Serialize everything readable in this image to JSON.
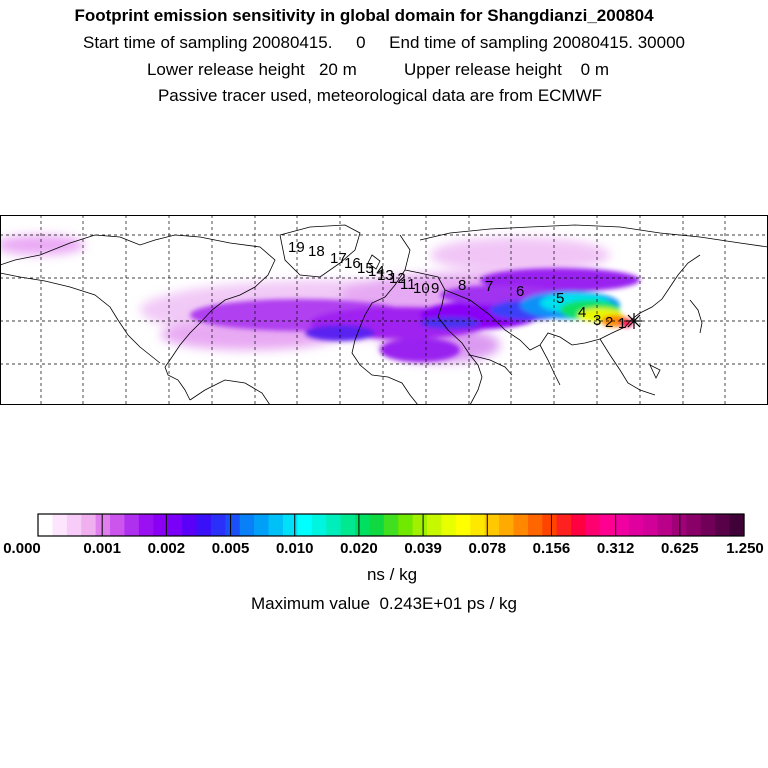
{
  "title": {
    "line1": "Footprint emission sensitivity in global domain for Shangdianzi_200804",
    "line2": "Start time of sampling 20080415.     0     End time of sampling 20080415. 30000",
    "line3": "Lower release height   20 m          Upper release height    0 m",
    "line4": "Passive tracer used, meteorological data are from ECMWF"
  },
  "map": {
    "trajectory_labels": [
      "1",
      "2",
      "3",
      "4",
      "5",
      "6",
      "7",
      "8",
      "9",
      "10",
      "11",
      "12",
      "13",
      "14",
      "15",
      "16",
      "17",
      "18",
      "19"
    ],
    "source_marker": "star-icon"
  },
  "chart_data": {
    "type": "heatmap",
    "colorbar_ticks": [
      "0.000",
      "0.001",
      "0.002",
      "0.005",
      "0.010",
      "0.020",
      "0.039",
      "0.078",
      "0.156",
      "0.312",
      "0.625",
      "1.250"
    ],
    "units": "ns / kg",
    "max_value_text": "Maximum value  0.243E+01 ps / kg",
    "colors": [
      "#ffffff",
      "#fde6fd",
      "#f8ccf8",
      "#f0b0f0",
      "#e080ee",
      "#cc55ee",
      "#b030f0",
      "#9a10f2",
      "#8a00f5",
      "#7a00f8",
      "#5a00f8",
      "#3a10f8",
      "#2a30f8",
      "#1a50f8",
      "#0a80f8",
      "#00a0f8",
      "#00c0f8",
      "#00e0f8",
      "#00ffff",
      "#00f5e0",
      "#00eebb",
      "#00e890",
      "#00e060",
      "#10d840",
      "#40e020",
      "#70e800",
      "#a0f000",
      "#c8f800",
      "#e8ff00",
      "#ffff00",
      "#ffe800",
      "#ffc800",
      "#ffaa00",
      "#ff8800",
      "#ff6600",
      "#ff4400",
      "#ff2020",
      "#ff0040",
      "#ff0070",
      "#ff0090",
      "#f000a0",
      "#e000a0",
      "#d00098",
      "#b80088",
      "#a00078",
      "#880068",
      "#700058",
      "#580048",
      "#400038"
    ]
  }
}
